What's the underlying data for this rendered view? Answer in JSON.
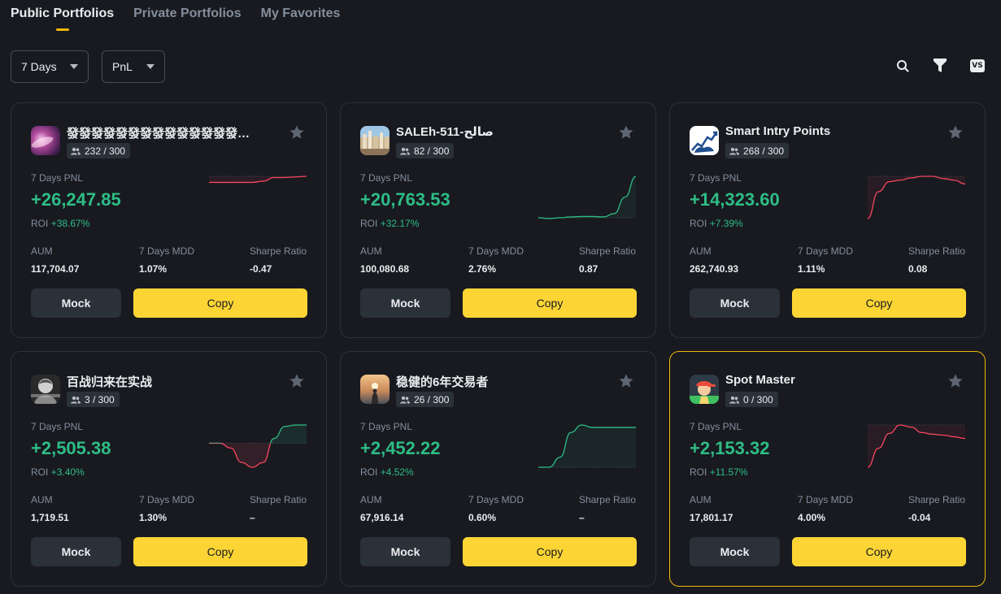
{
  "tabs": [
    {
      "label": "Public Portfolios",
      "active": true
    },
    {
      "label": "Private Portfolios",
      "active": false
    },
    {
      "label": "My Favorites",
      "active": false
    }
  ],
  "filters": {
    "period": "7 Days",
    "sort": "PnL"
  },
  "toolbar": {
    "search_icon": "search-icon",
    "filter_icon": "filter-icon",
    "compare_label": "VS"
  },
  "labels": {
    "pnl": "7 Days PNL",
    "roi": "ROI",
    "aum": "AUM",
    "mdd": "7 Days MDD",
    "sharpe": "Sharpe Ratio",
    "mock": "Mock",
    "copy": "Copy"
  },
  "colors": {
    "positive": "#2ebd85",
    "negative": "#f6465d",
    "accent": "#fcd535",
    "highlight_border": "#f0b90b"
  },
  "cards": [
    {
      "name": "發發發發發發發發發發發發發發發...",
      "followers": "232 / 300",
      "pnl": "+26,247.85",
      "roi": "+38.67%",
      "aum": "117,704.07",
      "mdd": "1.07%",
      "sharpe": "-0.47",
      "avatar": "purple-galaxy-avatar",
      "trend": [
        0.6,
        0.6,
        0.6,
        0.6,
        0.6,
        0.62,
        0.68,
        0.68,
        0.69,
        0.7
      ],
      "highlight": false
    },
    {
      "name": "SALEh-511-صالح",
      "followers": "82 / 300",
      "pnl": "+20,763.53",
      "roi": "+32.17%",
      "aum": "100,080.68",
      "mdd": "2.76%",
      "sharpe": "0.87",
      "avatar": "city-avatar",
      "trend": [
        0.0,
        -0.02,
        0.0,
        0.02,
        0.03,
        0.03,
        0.02,
        0.1,
        0.5,
        1.0
      ],
      "highlight": false
    },
    {
      "name": "Smart Intry Points",
      "followers": "268 / 300",
      "pnl": "+14,323.60",
      "roi": "+7.39%",
      "aum": "262,740.93",
      "mdd": "1.11%",
      "sharpe": "0.08",
      "avatar": "bull-chart-avatar",
      "trend": [
        0.0,
        0.35,
        0.48,
        0.5,
        0.53,
        0.55,
        0.55,
        0.52,
        0.5,
        0.45
      ],
      "highlight": false
    },
    {
      "name": "百战归来在实战",
      "followers": "3 / 300",
      "pnl": "+2,505.38",
      "roi": "+3.40%",
      "aum": "1,719.51",
      "mdd": "1.30%",
      "sharpe": "–",
      "avatar": "mono-portrait-avatar",
      "trend": [
        0.0,
        0.0,
        -0.1,
        -0.4,
        -0.5,
        -0.4,
        0.1,
        0.35,
        0.38,
        0.38
      ],
      "highlight": false
    },
    {
      "name": "稳健的6年交易者",
      "followers": "26 / 300",
      "pnl": "+2,452.22",
      "roi": "+4.52%",
      "aum": "67,916.14",
      "mdd": "0.60%",
      "sharpe": "–",
      "avatar": "sunset-avatar",
      "trend": [
        0.0,
        0.0,
        0.2,
        0.7,
        0.85,
        0.8,
        0.8,
        0.8,
        0.8,
        0.8
      ],
      "highlight": false
    },
    {
      "name": "Spot Master",
      "followers": "0 / 300",
      "pnl": "+2,153.32",
      "roi": "+11.57%",
      "aum": "17,801.17",
      "mdd": "4.00%",
      "sharpe": "-0.04",
      "avatar": "cap-character-avatar",
      "trend": [
        0.0,
        0.45,
        0.8,
        1.0,
        0.95,
        0.82,
        0.78,
        0.76,
        0.72,
        0.68
      ],
      "highlight": true
    }
  ]
}
